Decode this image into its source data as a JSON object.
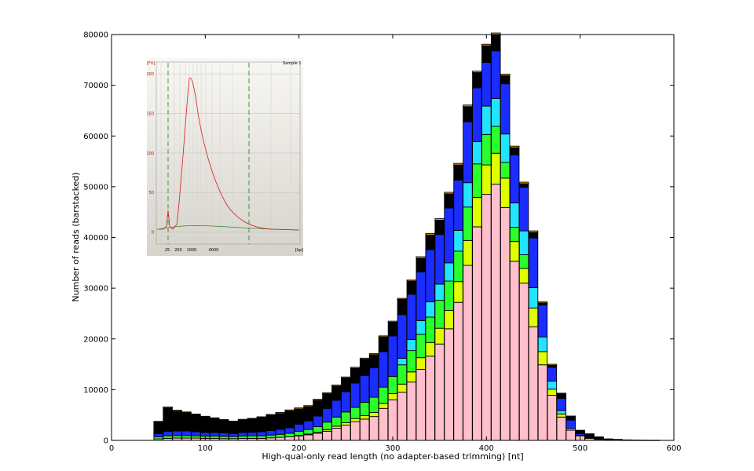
{
  "chart_data": {
    "type": "bar",
    "stacked": true,
    "title": "",
    "xlabel": "High-qual-only read length (no adapter-based trimming) [nt]",
    "ylabel": "Number of reads (barstacked)",
    "xlim": [
      0,
      600
    ],
    "ylim": [
      0,
      80000
    ],
    "xticks": [
      0,
      100,
      200,
      300,
      400,
      500,
      600
    ],
    "yticks": [
      0,
      10000,
      20000,
      30000,
      40000,
      50000,
      60000,
      70000,
      80000
    ],
    "grid": false,
    "bin_width": 9.7,
    "x": [
      50,
      60,
      70,
      80,
      90,
      100,
      110,
      120,
      130,
      140,
      150,
      160,
      170,
      180,
      190,
      200,
      210,
      220,
      230,
      240,
      250,
      260,
      270,
      280,
      290,
      300,
      310,
      320,
      330,
      340,
      350,
      360,
      370,
      380,
      390,
      400,
      410,
      420,
      430,
      440,
      450,
      460,
      470,
      480,
      490,
      500,
      510,
      520,
      530,
      540,
      550,
      560,
      570,
      580
    ],
    "series": [
      {
        "color": "#ffc0cb",
        "values": [
          300,
          400,
          450,
          450,
          450,
          400,
          400,
          350,
          350,
          400,
          400,
          400,
          500,
          600,
          700,
          900,
          1100,
          1400,
          1800,
          2400,
          3000,
          3700,
          4200,
          4700,
          6300,
          8000,
          9500,
          11500,
          14000,
          16600,
          19000,
          22000,
          27200,
          34500,
          42100,
          48500,
          50500,
          45900,
          35300,
          31000,
          22400,
          14900,
          8900,
          4600,
          2000,
          900,
          400,
          200,
          100,
          50,
          30,
          20,
          10,
          10
        ]
      },
      {
        "color": "#dfff00",
        "values": [
          0,
          0,
          0,
          0,
          0,
          0,
          0,
          0,
          0,
          0,
          0,
          0,
          0,
          0,
          0,
          100,
          150,
          200,
          300,
          400,
          500,
          600,
          700,
          800,
          1000,
          1200,
          1600,
          2000,
          2300,
          2700,
          3100,
          3600,
          4100,
          4900,
          5800,
          5800,
          6100,
          5800,
          3900,
          2900,
          3700,
          2600,
          1200,
          600,
          300,
          100,
          0,
          0,
          0,
          0,
          0,
          0,
          0,
          0
        ]
      },
      {
        "color": "#2bff2b",
        "values": [
          400,
          500,
          500,
          500,
          450,
          450,
          450,
          450,
          400,
          450,
          500,
          500,
          550,
          600,
          700,
          800,
          900,
          1100,
          1500,
          1800,
          2100,
          2200,
          2600,
          3000,
          3200,
          3400,
          3800,
          4200,
          4600,
          5000,
          5500,
          5800,
          6000,
          6600,
          6600,
          6000,
          5300,
          3100,
          2800,
          2700,
          0,
          0,
          0,
          0,
          0,
          0,
          0,
          0,
          0,
          0,
          0,
          0,
          0,
          0
        ]
      },
      {
        "color": "#22e4ff",
        "values": [
          0,
          0,
          0,
          0,
          0,
          0,
          0,
          0,
          0,
          0,
          0,
          0,
          0,
          0,
          0,
          0,
          0,
          0,
          0,
          0,
          0,
          0,
          0,
          0,
          0,
          0,
          1300,
          2200,
          2700,
          3000,
          3200,
          3600,
          4100,
          4800,
          4400,
          5600,
          5500,
          5600,
          4800,
          4700,
          4000,
          2900,
          1600,
          700,
          0,
          0,
          0,
          0,
          0,
          0,
          0,
          0,
          0,
          0
        ]
      },
      {
        "color": "#1a2cff",
        "values": [
          600,
          900,
          900,
          900,
          800,
          700,
          700,
          700,
          600,
          700,
          700,
          800,
          900,
          1000,
          1100,
          1400,
          1700,
          2100,
          2700,
          3300,
          4000,
          4800,
          5300,
          5800,
          7000,
          8000,
          8600,
          8900,
          9600,
          10300,
          9800,
          10800,
          9900,
          12000,
          10600,
          8600,
          9400,
          9900,
          9500,
          8600,
          9800,
          6300,
          2700,
          2400,
          1700,
          300,
          0,
          0,
          0,
          0,
          0,
          0,
          0,
          0
        ]
      },
      {
        "color": "#000000",
        "values": [
          2300,
          4600,
          3900,
          3600,
          3350,
          3050,
          2750,
          2450,
          2300,
          2450,
          2600,
          2800,
          3000,
          3100,
          3300,
          3000,
          2800,
          3100,
          2900,
          2800,
          2700,
          2900,
          3200,
          2600,
          2900,
          2700,
          3000,
          2600,
          2700,
          2900,
          2800,
          2800,
          3000,
          3000,
          3000,
          3300,
          3200,
          1600,
          1400,
          700,
          1100,
          400,
          400,
          900,
          800,
          700,
          900,
          500,
          200,
          150,
          70,
          40,
          30,
          20
        ]
      },
      {
        "color": "#ffa500",
        "values": [
          150,
          200,
          200,
          150,
          150,
          150,
          150,
          150,
          150,
          150,
          150,
          150,
          150,
          200,
          200,
          200,
          200,
          200,
          200,
          200,
          200,
          200,
          200,
          200,
          200,
          200,
          200,
          200,
          300,
          300,
          300,
          300,
          300,
          300,
          300,
          300,
          300,
          300,
          300,
          300,
          300,
          200,
          200,
          100,
          0,
          0,
          0,
          0,
          0,
          0,
          0,
          0,
          0,
          0
        ]
      }
    ],
    "inset": {
      "title": "Sample 1",
      "y_unit": "[FU]",
      "x_unit": "[bp]",
      "yticks": [
        "0",
        "50",
        "100",
        "150",
        "200"
      ],
      "xticks": [
        "25",
        "200",
        "1000",
        "4000"
      ],
      "y_range": [
        -15,
        215
      ],
      "red_peak_fu": 210
    }
  }
}
